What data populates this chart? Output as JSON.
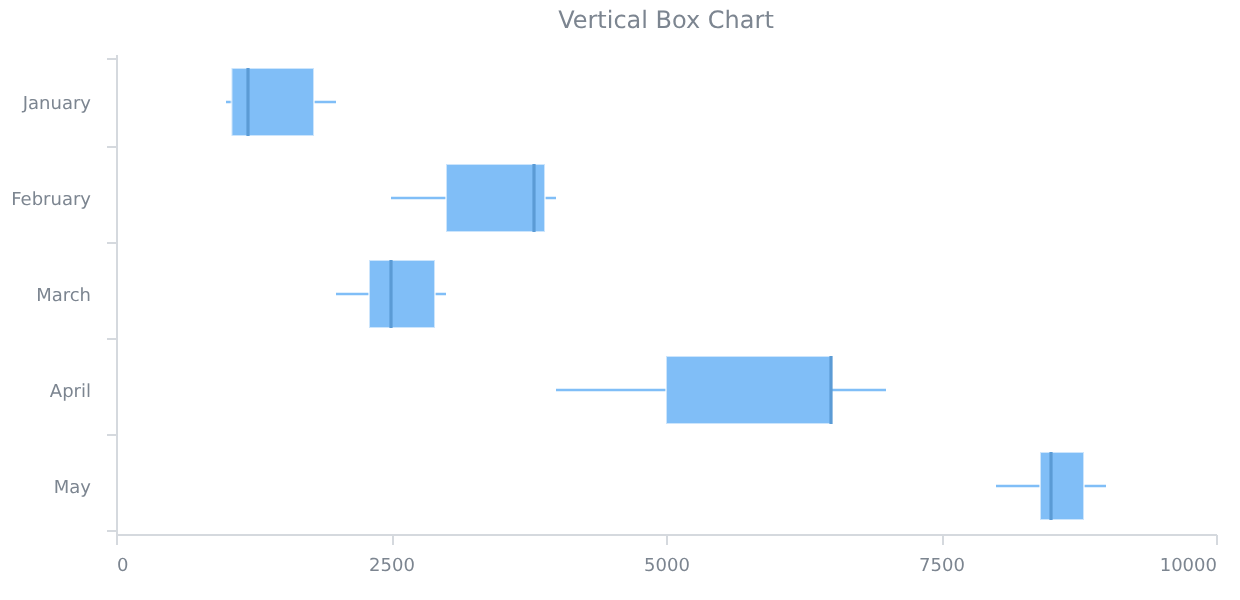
{
  "chart_data": {
    "type": "box",
    "title": "Vertical Box Chart",
    "orientation": "horizontal",
    "categories": [
      "January",
      "February",
      "March",
      "April",
      "May"
    ],
    "series": [
      {
        "color": "#80bef7",
        "boxes": [
          {
            "low": 1000,
            "q1": 1050,
            "median": 1200,
            "q3": 1800,
            "high": 2000
          },
          {
            "low": 2500,
            "q1": 3000,
            "median": 3800,
            "q3": 3900,
            "high": 4000
          },
          {
            "low": 2000,
            "q1": 2300,
            "median": 2500,
            "q3": 2900,
            "high": 3000
          },
          {
            "low": 4000,
            "q1": 5000,
            "median": 6500,
            "q3": 6500,
            "high": 7000
          },
          {
            "low": 8000,
            "q1": 8400,
            "median": 8500,
            "q3": 8800,
            "high": 9000
          }
        ]
      }
    ],
    "xlim": [
      0,
      10000
    ],
    "xticks": [
      0,
      2500,
      5000,
      7500,
      10000
    ],
    "grid": false
  }
}
